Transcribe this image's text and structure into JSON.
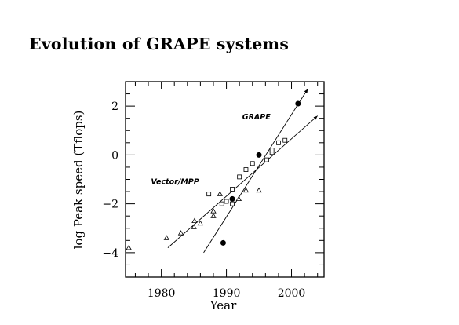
{
  "slide": {
    "title": "Evolution of GRAPE systems"
  },
  "chart_data": {
    "type": "scatter",
    "title": "Evolution of GRAPE systems",
    "xlabel": "Year",
    "ylabel": "log Peak speed (Tflops)",
    "xlim": [
      1974.5,
      2005
    ],
    "ylim": [
      -5,
      3
    ],
    "xticks": [
      1980,
      1990,
      2000
    ],
    "yticks": [
      -4,
      -2,
      0,
      2
    ],
    "grid": false,
    "series": [
      {
        "name": "GRAPE",
        "marker": "filled-circle",
        "points": [
          [
            1989.5,
            -3.6
          ],
          [
            1990.9,
            -1.8
          ],
          [
            1995.0,
            0.0
          ],
          [
            2001.0,
            2.1
          ]
        ]
      },
      {
        "name": "",
        "marker": "open-square",
        "points": [
          [
            1987.3,
            -1.6
          ],
          [
            1989.3,
            -2.0
          ],
          [
            1990.0,
            -1.9
          ],
          [
            1990.9,
            -1.4
          ],
          [
            1990.9,
            -2.0
          ],
          [
            1992.0,
            -0.9
          ],
          [
            1993.0,
            -0.6
          ],
          [
            1994.0,
            -0.35
          ],
          [
            1996.2,
            -0.2
          ],
          [
            1997.0,
            0.1
          ],
          [
            1997.0,
            0.2
          ],
          [
            1998.0,
            0.5
          ],
          [
            1999.0,
            0.6
          ]
        ]
      },
      {
        "name": "Vector/MPP",
        "marker": "open-triangle",
        "points": [
          [
            1975.0,
            -3.8
          ],
          [
            1980.8,
            -3.4
          ],
          [
            1983.0,
            -3.2
          ],
          [
            1985.0,
            -2.95
          ],
          [
            1985.1,
            -2.7
          ],
          [
            1986.0,
            -2.8
          ],
          [
            1988.0,
            -2.5
          ],
          [
            1988.0,
            -2.3
          ],
          [
            1989.0,
            -1.6
          ],
          [
            1991.9,
            -1.8
          ],
          [
            1993.0,
            -1.45
          ],
          [
            1995.0,
            -1.45
          ]
        ]
      }
    ],
    "trend_lines": [
      {
        "series": "GRAPE",
        "from": [
          1986.5,
          -4.0
        ],
        "to": [
          2002.5,
          2.7
        ]
      },
      {
        "series": "Vector/MPP",
        "from": [
          1981.0,
          -3.8
        ],
        "to": [
          2004.0,
          1.6
        ]
      }
    ],
    "annotations": [
      {
        "text": "GRAPE",
        "x": 1994.6,
        "y": 1.45
      },
      {
        "text": "Vector/MPP",
        "x": 1982.1,
        "y": -1.2
      }
    ]
  }
}
